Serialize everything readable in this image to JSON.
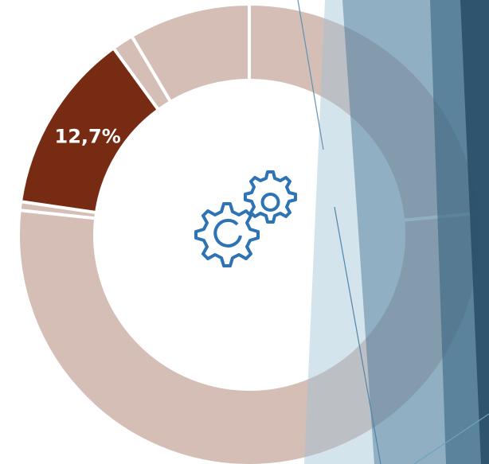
{
  "chart_data": {
    "type": "donut",
    "categories": [
      null,
      null,
      null,
      null,
      null,
      null
    ],
    "values": [
      23.5,
      53.2,
      0.6,
      12.7,
      1.5,
      8.5
    ],
    "value_labels": [
      null,
      null,
      null,
      "12,7%",
      null,
      null
    ],
    "colors": [
      "#d4beb6",
      "#d4beb6",
      "#d4beb6",
      "#772b13",
      "#d4beb6",
      "#d4beb6"
    ]
  }
}
